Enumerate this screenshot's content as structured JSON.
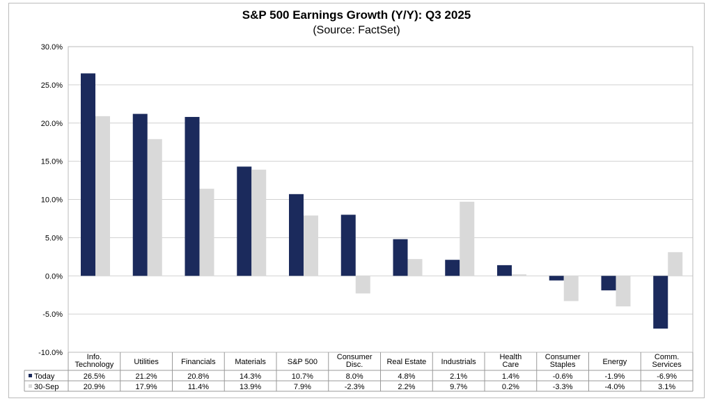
{
  "chart_data": {
    "type": "bar",
    "title": "S&P 500 Earnings Growth (Y/Y): Q3 2025",
    "subtitle": "(Source: FactSet)",
    "categories": [
      [
        "Info.",
        "Technology"
      ],
      [
        "Utilities"
      ],
      [
        "Financials"
      ],
      [
        "Materials"
      ],
      [
        "S&P 500"
      ],
      [
        "Consumer",
        "Disc."
      ],
      [
        "Real Estate"
      ],
      [
        "Industrials"
      ],
      [
        "Health",
        "Care"
      ],
      [
        "Consumer",
        "Staples"
      ],
      [
        "Energy"
      ],
      [
        "Comm.",
        "Services"
      ]
    ],
    "series": [
      {
        "name": "Today",
        "color": "#1b2a5c",
        "values": [
          26.5,
          21.2,
          20.8,
          14.3,
          10.7,
          8.0,
          4.8,
          2.1,
          1.4,
          -0.6,
          -1.9,
          -6.9
        ]
      },
      {
        "name": "30-Sep",
        "color": "#d9d9d9",
        "values": [
          20.9,
          17.9,
          11.4,
          13.9,
          7.9,
          -2.3,
          2.2,
          9.7,
          0.2,
          -3.3,
          -4.0,
          3.1
        ]
      }
    ],
    "yticks": [
      "30.0%",
      "25.0%",
      "20.0%",
      "15.0%",
      "10.0%",
      "5.0%",
      "0.0%",
      "-5.0%",
      "-10.0%"
    ],
    "ylim": [
      -10,
      30
    ],
    "grid": true,
    "legend": "data-table"
  }
}
